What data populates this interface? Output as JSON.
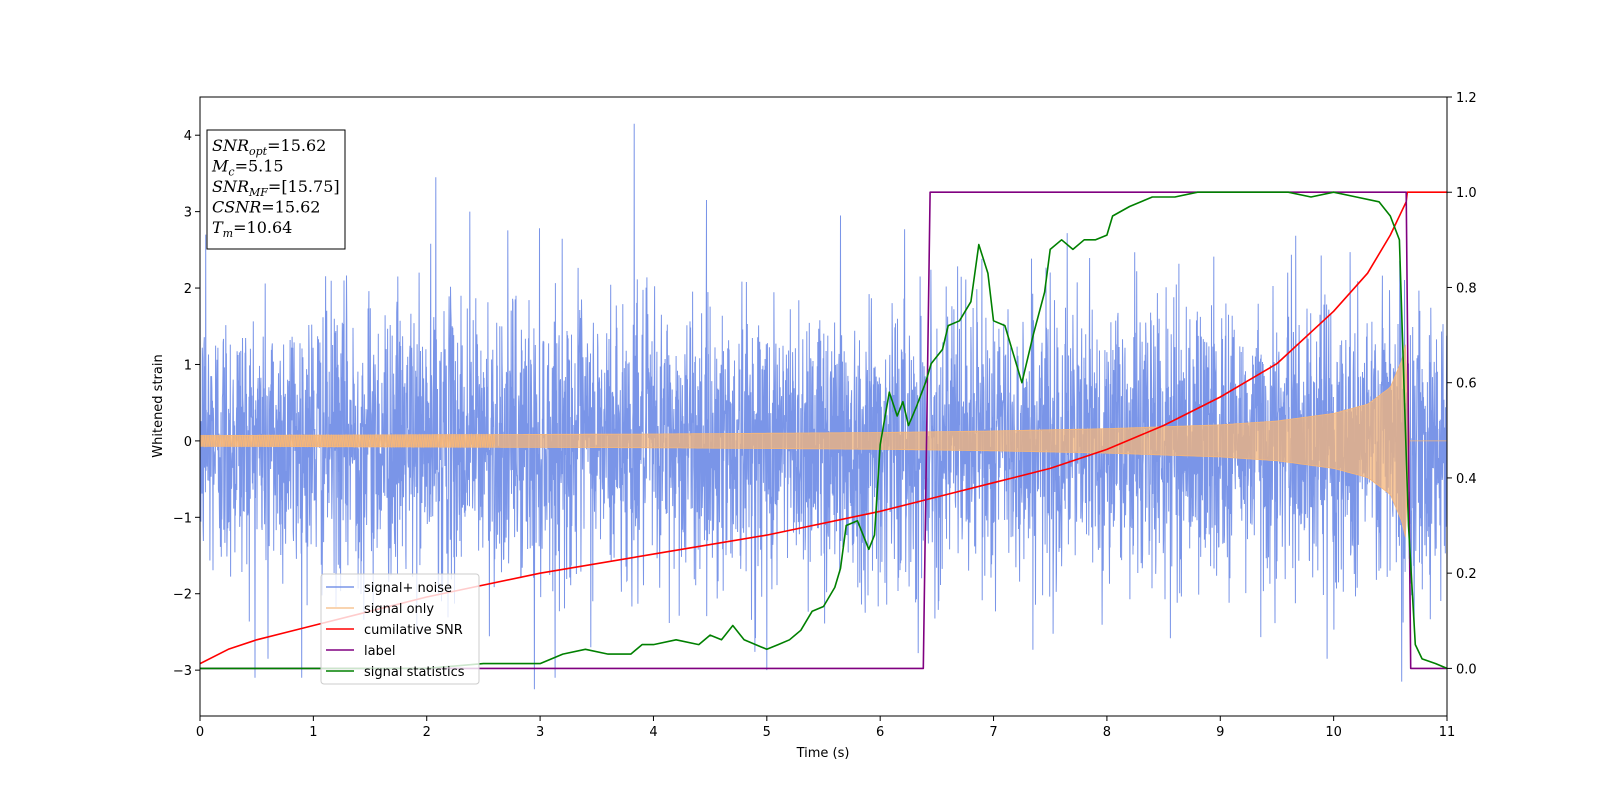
{
  "chart_data": {
    "type": "line",
    "title": "",
    "xlabel": "Time (s)",
    "ylabel": "Whitened strain",
    "y2label": "",
    "xlim": [
      0,
      11
    ],
    "ylim": [
      -3.6,
      4.5
    ],
    "y2lim": [
      -0.1,
      1.2
    ],
    "xticks": [
      "0",
      "1",
      "2",
      "3",
      "4",
      "5",
      "6",
      "7",
      "8",
      "9",
      "10",
      "11"
    ],
    "yticks": [
      "−3",
      "−2",
      "−1",
      "0",
      "1",
      "2",
      "3",
      "4"
    ],
    "y2ticks": [
      "0.0",
      "0.2",
      "0.4",
      "0.6",
      "0.8",
      "1.0",
      "1.2"
    ],
    "grid": false,
    "legend_position": "lower-left",
    "colors": {
      "signal_noise": "#6b8ae6",
      "signal_only": "#f5b67a",
      "cumulative_snr": "#ff0000",
      "label": "#800080",
      "signal_statistics": "#008000"
    },
    "annotation": [
      {
        "base": "SNR",
        "sub": "opt",
        "value": "=15.62"
      },
      {
        "base": "M",
        "sub": "c",
        "value": "=5.15"
      },
      {
        "base": "SNR",
        "sub": "MF",
        "value": "=[15.75]"
      },
      {
        "base": "CSNR",
        "sub": "",
        "value": "=15.62"
      },
      {
        "base": "T",
        "sub": "m",
        "value": "=10.64"
      }
    ],
    "series": [
      {
        "name": "signal+ noise",
        "axis": "left",
        "description_of_values": "whitened noisy strain, approx. Gaussian with std ~1 over 0–11 s",
        "envelope": {
          "x": [
            0,
            11
          ],
          "y_min": -3.3,
          "y_max": 4.2
        },
        "peaks": [
          [
            0.05,
            2.7
          ],
          [
            0.6,
            2.6
          ],
          [
            2.08,
            3.45
          ],
          [
            3.83,
            4.15
          ],
          [
            2.38,
            3.0
          ],
          [
            5.65,
            2.95
          ],
          [
            2.95,
            -3.25
          ],
          [
            10.6,
            -3.15
          ],
          [
            0.6,
            -2.85
          ],
          [
            5.0,
            -3.0
          ]
        ]
      },
      {
        "name": "signal only",
        "axis": "left",
        "description_of_values": "chirp waveform, amplitude grows from ~0.07 to ~1.3 near t=10.64 then drops to 0",
        "amplitude_x": [
          0,
          2,
          4,
          6,
          7,
          8,
          9,
          9.5,
          10,
          10.3,
          10.5,
          10.6,
          10.64,
          10.66,
          11
        ],
        "amplitude_y": [
          0.07,
          0.08,
          0.09,
          0.11,
          0.13,
          0.16,
          0.21,
          0.26,
          0.36,
          0.48,
          0.7,
          1.05,
          1.3,
          0,
          0
        ]
      },
      {
        "name": "cumilative SNR",
        "axis": "right",
        "x": [
          0,
          0.25,
          0.5,
          1,
          2,
          3,
          4,
          5,
          6,
          6.5,
          7,
          7.5,
          8,
          8.5,
          9,
          9.5,
          10,
          10.3,
          10.5,
          10.64,
          10.65,
          11
        ],
        "y": [
          0.01,
          0.04,
          0.06,
          0.09,
          0.15,
          0.2,
          0.24,
          0.28,
          0.33,
          0.36,
          0.39,
          0.42,
          0.46,
          0.51,
          0.57,
          0.64,
          0.75,
          0.83,
          0.91,
          0.98,
          1.0,
          1.0
        ]
      },
      {
        "name": "label",
        "axis": "right",
        "x": [
          0,
          6.38,
          6.44,
          10.62,
          10.64,
          10.68,
          11
        ],
        "y": [
          0,
          0,
          1,
          1,
          1,
          0,
          0
        ]
      },
      {
        "name": "signal statistics",
        "axis": "right",
        "x": [
          0,
          1,
          2,
          2.5,
          3,
          3.2,
          3.4,
          3.6,
          3.8,
          3.9,
          4.0,
          4.2,
          4.4,
          4.5,
          4.6,
          4.7,
          4.8,
          5.0,
          5.1,
          5.2,
          5.3,
          5.4,
          5.5,
          5.6,
          5.65,
          5.7,
          5.8,
          5.9,
          5.95,
          6.0,
          6.08,
          6.15,
          6.2,
          6.25,
          6.32,
          6.4,
          6.45,
          6.55,
          6.6,
          6.7,
          6.8,
          6.87,
          6.95,
          7.0,
          7.1,
          7.25,
          7.35,
          7.45,
          7.5,
          7.6,
          7.7,
          7.8,
          7.9,
          8.0,
          8.05,
          8.2,
          8.4,
          8.6,
          8.8,
          9.0,
          9.3,
          9.6,
          9.8,
          10.0,
          10.2,
          10.4,
          10.5,
          10.58,
          10.62,
          10.66,
          10.72,
          10.78,
          10.9,
          11
        ],
        "y": [
          0.0,
          0.0,
          0.0,
          0.01,
          0.01,
          0.03,
          0.04,
          0.03,
          0.03,
          0.05,
          0.05,
          0.06,
          0.05,
          0.07,
          0.06,
          0.09,
          0.06,
          0.04,
          0.05,
          0.06,
          0.08,
          0.12,
          0.13,
          0.17,
          0.21,
          0.3,
          0.31,
          0.25,
          0.28,
          0.47,
          0.58,
          0.53,
          0.56,
          0.51,
          0.55,
          0.6,
          0.64,
          0.67,
          0.72,
          0.73,
          0.77,
          0.89,
          0.83,
          0.73,
          0.72,
          0.6,
          0.7,
          0.79,
          0.88,
          0.9,
          0.88,
          0.9,
          0.9,
          0.91,
          0.95,
          0.97,
          0.99,
          0.99,
          1.0,
          1.0,
          1.0,
          1.0,
          0.99,
          1.0,
          0.99,
          0.98,
          0.95,
          0.9,
          0.6,
          0.3,
          0.05,
          0.02,
          0.01,
          0.0
        ]
      }
    ]
  }
}
